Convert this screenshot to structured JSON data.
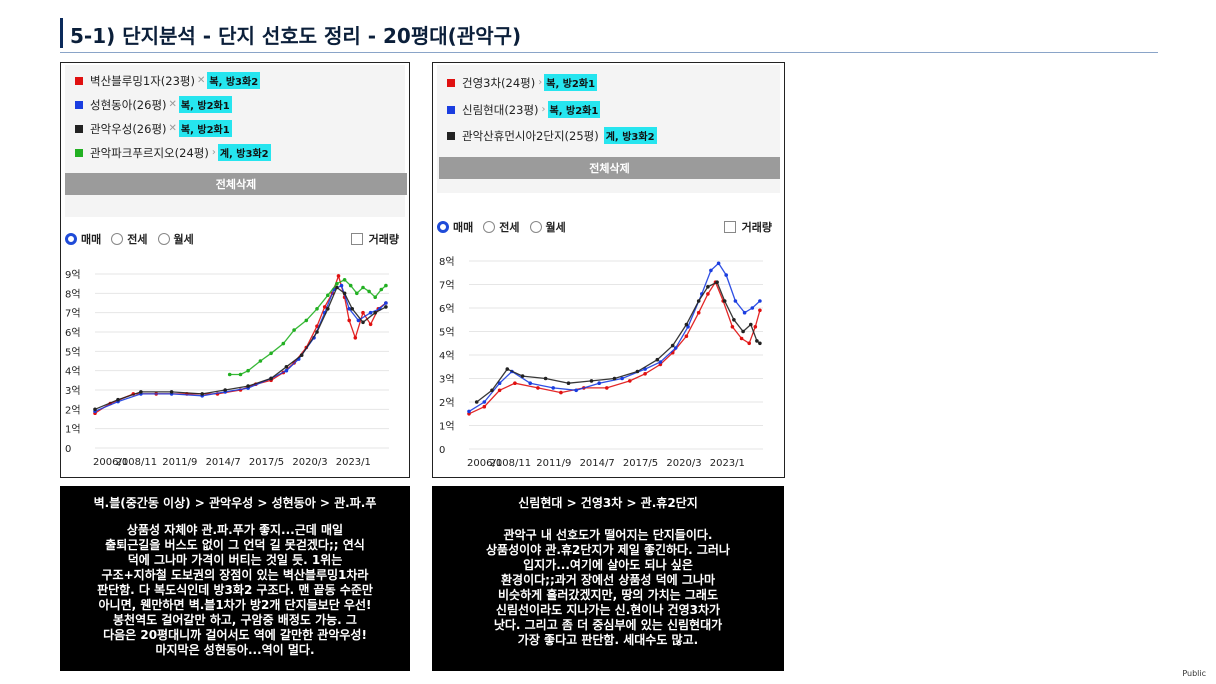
{
  "page": {
    "title": "5-1) 단지분석 - 단지 선호도 정리 - 20평대(관악구)",
    "footer_label": "Public"
  },
  "left": {
    "legend": [
      {
        "name": "벽산블루밍1자(23평)",
        "color": "#e01010",
        "has_x": true,
        "tag": "복, 방3화2"
      },
      {
        "name": "성현동아(26평)",
        "color": "#1a3de0",
        "has_x": true,
        "tag": "복, 방2화1"
      },
      {
        "name": "관악우성(26평)",
        "color": "#222222",
        "has_x": true,
        "tag": "복, 방2화1"
      },
      {
        "name": "관악파크푸르지오(24평)",
        "color": "#22b022",
        "has_x": false,
        "tag": "계, 방3화2"
      }
    ],
    "delete_all": "전체삭제",
    "radios": [
      "매매",
      "전세",
      "월세"
    ],
    "selected_radio": 0,
    "checkbox_label": "거래량",
    "chart_data": {
      "type": "line",
      "ylabels": [
        "0",
        "1억",
        "2억",
        "3억",
        "4억",
        "5억",
        "6억",
        "7억",
        "8억",
        "9억"
      ],
      "xlabels": [
        "2006/1",
        "2008/11",
        "2011/9",
        "2014/7",
        "2017/5",
        "2020/3",
        "2023/1"
      ],
      "ylim": [
        0,
        9
      ],
      "xlim": [
        2006.0,
        2025.2
      ],
      "series": [
        {
          "name": "벽산블루밍1자(23평)",
          "color": "#e01010",
          "x": [
            2006.0,
            2007.0,
            2008.5,
            2010,
            2012,
            2014,
            2015.5,
            2016.5,
            2017.5,
            2018.3,
            2019,
            2019.8,
            2020.5,
            2021,
            2021.5,
            2021.9,
            2022.3,
            2022.6,
            2023,
            2023.5,
            2024,
            2024.5,
            2025
          ],
          "y": [
            1.8,
            2.3,
            2.8,
            2.8,
            2.8,
            2.8,
            3.0,
            3.3,
            3.5,
            3.9,
            4.4,
            5.2,
            6.3,
            7.3,
            8.0,
            8.9,
            7.8,
            6.6,
            5.7,
            7.0,
            6.4,
            7.2,
            7.5
          ]
        },
        {
          "name": "성현동아(26평)",
          "color": "#1a3de0",
          "x": [
            2006.0,
            2007.5,
            2009,
            2011,
            2013,
            2014.5,
            2016,
            2017.5,
            2018.5,
            2019.3,
            2020.3,
            2021,
            2021.6,
            2022.1,
            2022.6,
            2023.2,
            2024,
            2024.6,
            2025
          ],
          "y": [
            1.9,
            2.4,
            2.8,
            2.8,
            2.7,
            2.9,
            3.1,
            3.6,
            4.0,
            4.6,
            5.7,
            7.0,
            8.2,
            8.4,
            7.2,
            6.6,
            7.0,
            7.2,
            7.5
          ]
        },
        {
          "name": "관악우성(26평)",
          "color": "#222222",
          "x": [
            2006.0,
            2007.5,
            2009,
            2011,
            2013,
            2014.5,
            2016,
            2017.5,
            2018.5,
            2019.5,
            2020.5,
            2021.2,
            2021.8,
            2022.3,
            2022.8,
            2023.5,
            2024.3,
            2025
          ],
          "y": [
            2.0,
            2.5,
            2.9,
            2.9,
            2.8,
            3.0,
            3.2,
            3.6,
            4.2,
            4.8,
            6.0,
            7.2,
            8.3,
            8.0,
            7.2,
            6.5,
            7.0,
            7.3
          ]
        },
        {
          "name": "관악파크푸르지오(24평)",
          "color": "#22b022",
          "x": [
            2014.8,
            2015.5,
            2016,
            2016.8,
            2017.5,
            2018.3,
            2019,
            2019.8,
            2020.5,
            2021.2,
            2021.8,
            2022.3,
            2022.7,
            2023.1,
            2023.5,
            2023.9,
            2024.3,
            2024.7,
            2025
          ],
          "y": [
            3.8,
            3.8,
            4.0,
            4.5,
            4.9,
            5.4,
            6.1,
            6.6,
            7.2,
            7.9,
            8.5,
            8.7,
            8.4,
            8.0,
            8.3,
            8.1,
            7.8,
            8.2,
            8.4
          ]
        }
      ]
    },
    "desc": {
      "heading": "벽.블(중간동 이상) > 관악우성 > 성현동아 > 관.파.푸",
      "lines": [
        "상품성 자체야 관.파.푸가 좋지...근데 매일",
        "출퇴근길을 버스도 없이 그 언덕 길 못걷겠다;; 연식",
        "덕에 그나마 가격이 버티는 것일 듯. 1위는",
        "구조+지하철 도보권의 장점이 있는 벽산블루밍1차라",
        "판단함. 다 복도식인데 방3화2 구조다. 맨 끝동 수준만",
        "아니면, 웬만하면 벽.블1차가 방2개 단지들보단 우선!",
        "봉천역도 걸어갈만 하고, 구암중 배정도 가능. 그",
        "다음은 20평대니까 걸어서도 역에 갈만한 관악우성!",
        "마지막은 성현동아...역이 멀다."
      ]
    }
  },
  "right": {
    "legend": [
      {
        "name": "건영3차(24평)",
        "color": "#e01010",
        "has_x": false,
        "tag": "복, 방2화1"
      },
      {
        "name": "신림현대(23평)",
        "color": "#1a3de0",
        "has_x": false,
        "tag": "복, 방2화1"
      },
      {
        "name": "관악산휴먼시아2단지(25평)",
        "color": "#222222",
        "has_x": false,
        "tag": "계, 방3화2"
      }
    ],
    "delete_all": "전체삭제",
    "radios": [
      "매매",
      "전세",
      "월세"
    ],
    "selected_radio": 0,
    "checkbox_label": "거래량",
    "chart_data": {
      "type": "line",
      "ylabels": [
        "0",
        "1억",
        "2억",
        "3억",
        "4억",
        "5억",
        "6억",
        "7억",
        "8억"
      ],
      "xlabels": [
        "2006/1",
        "2008/11",
        "2011/9",
        "2014/7",
        "2017/5",
        "2020/3",
        "2023/1"
      ],
      "ylim": [
        0,
        8
      ],
      "xlim": [
        2006.0,
        2025.2
      ],
      "series": [
        {
          "name": "건영3차(24평)",
          "color": "#e01010",
          "x": [
            2006.0,
            2007,
            2008,
            2009,
            2010.5,
            2012,
            2013.5,
            2015,
            2016.5,
            2017.5,
            2018.5,
            2019.3,
            2020.2,
            2021,
            2021.6,
            2022.1,
            2022.6,
            2023.2,
            2023.8,
            2024.3,
            2024.7,
            2025
          ],
          "y": [
            1.5,
            1.8,
            2.5,
            2.8,
            2.6,
            2.4,
            2.6,
            2.6,
            2.9,
            3.2,
            3.6,
            4.1,
            4.8,
            5.8,
            6.6,
            7.1,
            6.3,
            5.2,
            4.7,
            4.5,
            5.2,
            5.9
          ]
        },
        {
          "name": "신림현대(23평)",
          "color": "#1a3de0",
          "x": [
            2006.0,
            2007,
            2008,
            2008.8,
            2010,
            2011.5,
            2013,
            2014.5,
            2016,
            2017.5,
            2018.5,
            2019.5,
            2020.3,
            2021.2,
            2021.8,
            2022.3,
            2022.8,
            2023.4,
            2024,
            2024.5,
            2025
          ],
          "y": [
            1.6,
            2.0,
            2.8,
            3.3,
            2.8,
            2.6,
            2.5,
            2.8,
            3.0,
            3.4,
            3.7,
            4.3,
            5.2,
            6.6,
            7.6,
            7.9,
            7.4,
            6.3,
            5.8,
            6.0,
            6.3
          ]
        },
        {
          "name": "관악산휴먼시아2단지(25평)",
          "color": "#222222",
          "x": [
            2006.5,
            2007.5,
            2008.5,
            2009.5,
            2011,
            2012.5,
            2014,
            2015.5,
            2017,
            2018.3,
            2019.3,
            2020.2,
            2021,
            2021.6,
            2022.2,
            2022.7,
            2023.3,
            2023.9,
            2024.4,
            2024.8,
            2025
          ],
          "y": [
            2.0,
            2.5,
            3.4,
            3.1,
            3.0,
            2.8,
            2.9,
            3.0,
            3.3,
            3.8,
            4.4,
            5.3,
            6.3,
            6.9,
            7.1,
            6.3,
            5.5,
            5.0,
            5.3,
            4.6,
            4.5
          ]
        }
      ]
    },
    "desc": {
      "heading": "신림현대 > 건영3차 > 관.휴2단지",
      "lines": [
        "관악구 내 선호도가 떨어지는 단지들이다.",
        "상품성이야 관.휴2단지가 제일 좋긴하다. 그러나",
        "입지가...여기에 살아도 되나 싶은",
        "환경이다;;과거 장에선 상품성 덕에 그나마",
        "비슷하게 흘러갔겠지만, 땅의 가치는 그래도",
        "신림선이라도 지나가는 신.현이나 건영3차가",
        "낫다. 그리고 좀 더 중심부에 있는 신림현대가",
        "가장 좋다고 판단함. 세대수도 많고."
      ]
    }
  }
}
